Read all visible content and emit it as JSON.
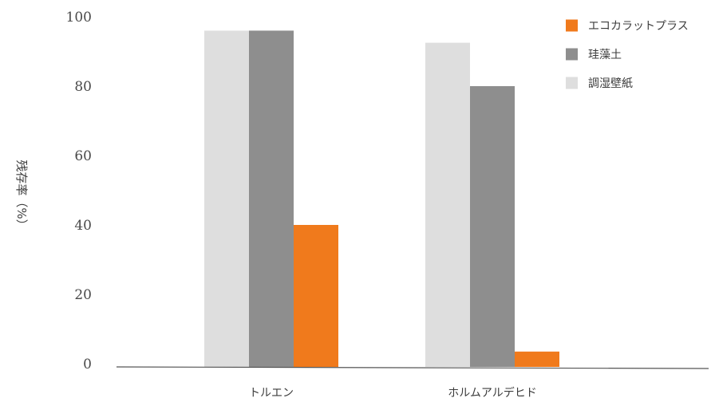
{
  "chart_data": {
    "type": "bar",
    "categories": [
      "トルエン",
      "ホルムアルデヒド"
    ],
    "series": [
      {
        "name": "調湿壁紙",
        "values": [
          96,
          92.5
        ],
        "color": "#dedede"
      },
      {
        "name": "珪藻土",
        "values": [
          96,
          80
        ],
        "color": "#8e8e8e"
      },
      {
        "name": "エコカラットプラス",
        "values": [
          40,
          3.5
        ],
        "color": "#f07a1c"
      }
    ],
    "legend_order": [
      "エコカラットプラス",
      "珪藻土",
      "調湿壁紙"
    ],
    "ylabel": "残存率（%）",
    "yticks": [
      0,
      20,
      40,
      60,
      80,
      100
    ],
    "ylim": [
      0,
      100
    ],
    "grid": false,
    "legend_position": "top-right"
  }
}
